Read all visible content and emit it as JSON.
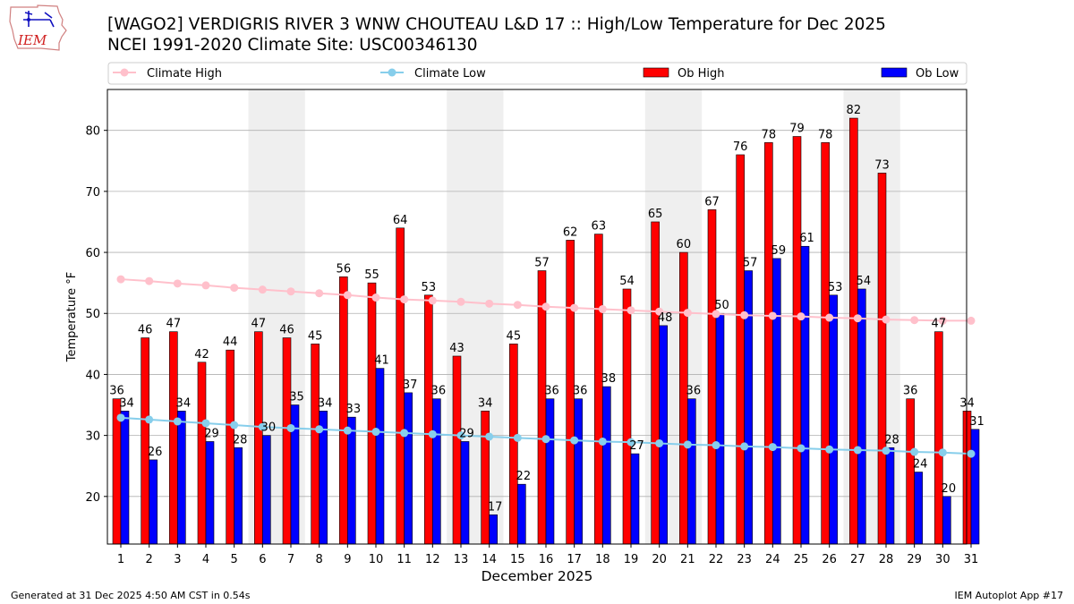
{
  "header": {
    "title_line1": "[WAGO2] VERDIGRIS RIVER 3 WNW CHOUTEAU L&D 17 :: High/Low Temperature for Dec 2025",
    "title_line2": "NCEI 1991-2020 Climate Site: USC00346130",
    "logo_text": "IEM"
  },
  "footer": {
    "left": "Generated at 31 Dec 2025 4:50 AM CST in 0.54s",
    "right": "IEM Autoplot App #17"
  },
  "colors": {
    "ob_high": "#ff0000",
    "ob_low": "#0000ff",
    "climate_high": "#ffc0cb",
    "climate_low": "#87ceeb",
    "weekend_shade": "#efefef",
    "grid": "#b0b0b0"
  },
  "chart_data": {
    "type": "bar",
    "xlabel": "December 2025",
    "ylabel": "Temperature °F",
    "ylim": [
      12.2,
      86.7
    ],
    "yticks": [
      20,
      30,
      40,
      50,
      60,
      70,
      80
    ],
    "grid": "horizontal",
    "legend_position": "top",
    "categories": [
      "1",
      "2",
      "3",
      "4",
      "5",
      "6",
      "7",
      "8",
      "9",
      "10",
      "11",
      "12",
      "13",
      "14",
      "15",
      "16",
      "17",
      "18",
      "19",
      "20",
      "21",
      "22",
      "23",
      "24",
      "25",
      "26",
      "27",
      "28",
      "29",
      "30",
      "31"
    ],
    "shaded_ranges": [
      [
        6,
        7
      ],
      [
        13,
        14
      ],
      [
        20,
        21
      ],
      [
        27,
        28
      ]
    ],
    "series": [
      {
        "name": "Climate High",
        "kind": "line",
        "values": [
          55.6,
          55.3,
          54.9,
          54.6,
          54.2,
          53.9,
          53.6,
          53.3,
          53.0,
          52.6,
          52.3,
          52.1,
          51.9,
          51.6,
          51.4,
          51.1,
          50.9,
          50.7,
          50.5,
          50.3,
          50.1,
          49.9,
          49.7,
          49.6,
          49.5,
          49.3,
          49.2,
          49.0,
          48.9,
          48.8,
          48.8
        ]
      },
      {
        "name": "Climate Low",
        "kind": "line",
        "values": [
          32.9,
          32.6,
          32.3,
          32.0,
          31.7,
          31.4,
          31.2,
          31.0,
          30.8,
          30.6,
          30.4,
          30.2,
          30.0,
          29.8,
          29.6,
          29.4,
          29.2,
          29.0,
          28.9,
          28.7,
          28.5,
          28.4,
          28.2,
          28.1,
          27.9,
          27.7,
          27.6,
          27.5,
          27.3,
          27.2,
          27.0
        ]
      },
      {
        "name": "Ob High",
        "kind": "bar",
        "values": [
          36,
          46,
          47,
          42,
          44,
          47,
          46,
          45,
          56,
          55,
          64,
          53,
          43,
          34,
          45,
          57,
          62,
          63,
          54,
          65,
          60,
          67,
          76,
          78,
          79,
          78,
          82,
          73,
          36,
          47,
          34
        ]
      },
      {
        "name": "Ob Low",
        "kind": "bar",
        "values": [
          34,
          26,
          34,
          29,
          28,
          30,
          35,
          34,
          33,
          41,
          37,
          36,
          29,
          17,
          22,
          36,
          36,
          38,
          27,
          48,
          36,
          50,
          57,
          59,
          61,
          53,
          54,
          28,
          24,
          20,
          31
        ]
      }
    ]
  }
}
